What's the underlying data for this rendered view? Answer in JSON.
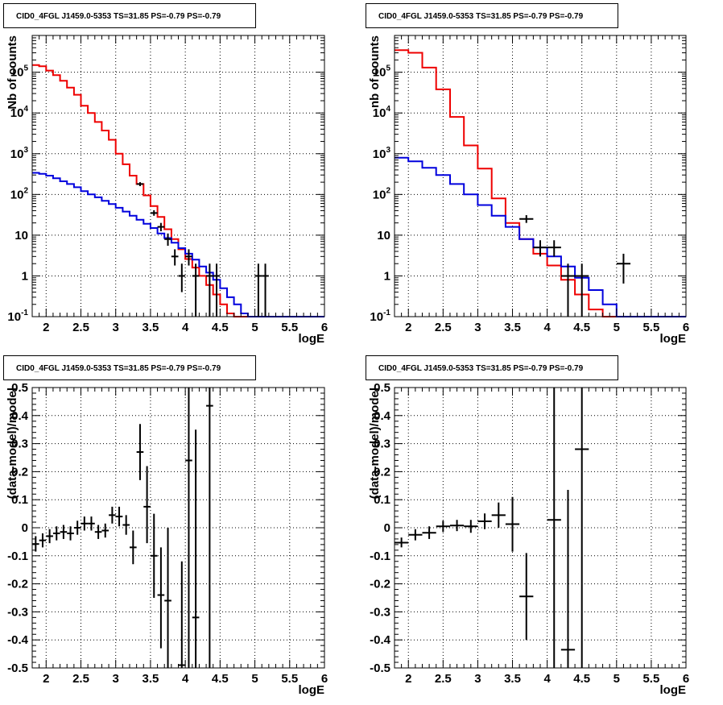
{
  "figure_title": "CID0_4FGL J1459.0-5353 TS=31.85 PS=-0.79 PS=-0.79",
  "colors": {
    "model_total": "#ee0000",
    "model_component": "#0000dd",
    "data": "#000000",
    "grid": "#000000",
    "background": "#ffffff"
  },
  "chart_data": [
    {
      "type": "line",
      "panel": "top-left",
      "title": "CID0_4FGL J1459.0-5353 TS=31.85 PS=-0.79 PS=-0.79",
      "xlabel": "logE",
      "ylabel": "Nb of counts",
      "xlim": [
        1.8,
        6.0
      ],
      "ylim": [
        0.1,
        800000
      ],
      "ylog": true,
      "grid": true,
      "xticks": [
        "2",
        "2.5",
        "3",
        "3.5",
        "4",
        "4.5",
        "5",
        "5.5",
        "6"
      ],
      "yticks": [
        "10^{-1}",
        "1",
        "10",
        "10^{2}",
        "10^{3}",
        "10^{4}",
        "10^{5}"
      ],
      "bin_edges": [
        1.8,
        1.9,
        2.0,
        2.1,
        2.2,
        2.3,
        2.4,
        2.5,
        2.6,
        2.7,
        2.8,
        2.9,
        3.0,
        3.1,
        3.2,
        3.3,
        3.4,
        3.5,
        3.6,
        3.7,
        3.8,
        3.9,
        4.0,
        4.1,
        4.2,
        4.3,
        4.4,
        4.5,
        4.6,
        4.7,
        4.8,
        4.9,
        5.0,
        5.1,
        5.2,
        5.3,
        5.4,
        5.5,
        5.6,
        5.7,
        5.8,
        5.9,
        6.0
      ],
      "series": [
        {
          "role": "model_total",
          "color": "#ee0000",
          "values": [
            150000,
            140000,
            110000,
            85000,
            62000,
            42000,
            28000,
            15000,
            10000,
            6000,
            3700,
            2200,
            1000,
            550,
            290,
            180,
            95,
            52,
            28,
            14,
            8,
            4.5,
            2.6,
            1.6,
            1.0,
            0.6,
            0.35,
            0.2,
            0.12,
            0.1,
            0.1,
            0.1,
            0.1,
            0.1,
            0.1,
            0.1,
            0.1,
            0.1,
            0.1,
            0.1,
            0.1,
            0.1
          ]
        },
        {
          "role": "model_component",
          "color": "#0000dd",
          "values": [
            340,
            320,
            290,
            250,
            210,
            180,
            150,
            120,
            100,
            85,
            70,
            58,
            47,
            38,
            30,
            24,
            19,
            15,
            11,
            8.5,
            6.5,
            4.8,
            3.5,
            2.5,
            1.7,
            1.2,
            0.8,
            0.5,
            0.3,
            0.2,
            0.12,
            0.1,
            0.1,
            0.1,
            0.1,
            0.1,
            0.1,
            0.1,
            0.1,
            0.1,
            0.1,
            0.1
          ]
        }
      ],
      "points": [
        {
          "x": 3.35,
          "xerr": 0.05,
          "y": 180,
          "ylo": 160,
          "yhi": 200
        },
        {
          "x": 3.55,
          "xerr": 0.05,
          "y": 35,
          "ylo": 30,
          "yhi": 41
        },
        {
          "x": 3.65,
          "xerr": 0.05,
          "y": 16,
          "ylo": 12.5,
          "yhi": 20
        },
        {
          "x": 3.75,
          "xerr": 0.05,
          "y": 8,
          "ylo": 5.5,
          "yhi": 11
        },
        {
          "x": 3.85,
          "xerr": 0.05,
          "y": 3,
          "ylo": 1.8,
          "yhi": 4.5
        },
        {
          "x": 3.95,
          "xerr": 0.05,
          "y": 1,
          "ylo": 0.4,
          "yhi": 2.0
        },
        {
          "x": 4.05,
          "xerr": 0.05,
          "y": 3,
          "ylo": 1.8,
          "yhi": 4.5
        },
        {
          "x": 4.15,
          "xerr": 0.05,
          "y": 1,
          "ylo": 0.1,
          "yhi": 2.0
        },
        {
          "x": 4.35,
          "xerr": 0.05,
          "y": 1,
          "ylo": 0.1,
          "yhi": 2.0
        },
        {
          "x": 4.45,
          "xerr": 0.05,
          "y": 1,
          "ylo": 0.1,
          "yhi": 2.0
        },
        {
          "x": 5.05,
          "xerr": 0.05,
          "y": 1,
          "ylo": 0.1,
          "yhi": 2.0
        },
        {
          "x": 5.15,
          "xerr": 0.05,
          "y": 1,
          "ylo": 0.1,
          "yhi": 2.0
        }
      ]
    },
    {
      "type": "line",
      "panel": "top-right",
      "title": "CID0_4FGL J1459.0-5353 TS=31.85 PS=-0.79 PS=-0.79",
      "xlabel": "logE",
      "ylabel": "nb of counts",
      "xlim": [
        1.8,
        6.0
      ],
      "ylim": [
        0.1,
        800000
      ],
      "ylog": true,
      "grid": true,
      "xticks": [
        "2",
        "2.5",
        "3",
        "3.5",
        "4",
        "4.5",
        "5",
        "5.5",
        "6"
      ],
      "yticks": [
        "10^{-1}",
        "1",
        "10",
        "10^{2}",
        "10^{3}",
        "10^{4}",
        "10^{5}"
      ],
      "bin_edges": [
        1.8,
        2.0,
        2.2,
        2.4,
        2.6,
        2.8,
        3.0,
        3.2,
        3.4,
        3.6,
        3.8,
        4.0,
        4.2,
        4.4,
        4.6,
        4.8,
        5.0,
        5.2,
        5.4,
        5.6,
        5.8,
        6.0
      ],
      "series": [
        {
          "role": "model_total",
          "color": "#ee0000",
          "values": [
            350000,
            300000,
            130000,
            38000,
            8000,
            1600,
            430,
            80,
            20,
            8,
            3.5,
            1.8,
            0.8,
            0.35,
            0.15,
            0.1,
            0.1,
            0.1,
            0.1,
            0.1,
            0.1
          ]
        },
        {
          "role": "model_component",
          "color": "#0000dd",
          "values": [
            800,
            650,
            450,
            300,
            180,
            100,
            55,
            30,
            16,
            8,
            5,
            3,
            1.7,
            0.9,
            0.45,
            0.2,
            0.1,
            0.1,
            0.1,
            0.1,
            0.1
          ]
        }
      ],
      "points": [
        {
          "x": 3.7,
          "xerr": 0.1,
          "y": 25,
          "ylo": 20,
          "yhi": 31
        },
        {
          "x": 3.9,
          "xerr": 0.1,
          "y": 5,
          "ylo": 3,
          "yhi": 7.5
        },
        {
          "x": 4.1,
          "xerr": 0.1,
          "y": 5,
          "ylo": 3,
          "yhi": 7.5
        },
        {
          "x": 4.3,
          "xerr": 0.1,
          "y": 1,
          "ylo": 0.1,
          "yhi": 2.0
        },
        {
          "x": 4.5,
          "xerr": 0.1,
          "y": 1,
          "ylo": 0.1,
          "yhi": 2.0
        },
        {
          "x": 5.1,
          "xerr": 0.1,
          "y": 2,
          "ylo": 0.65,
          "yhi": 3.5
        }
      ]
    },
    {
      "type": "scatter",
      "panel": "bottom-left",
      "title": "CID0_4FGL J1459.0-5353 TS=31.85 PS=-0.79 PS=-0.79",
      "xlabel": "logE",
      "ylabel": "(data-model)/model",
      "xlim": [
        1.8,
        6.0
      ],
      "ylim": [
        -0.5,
        0.5
      ],
      "ylog": false,
      "grid": true,
      "xticks": [
        "2",
        "2.5",
        "3",
        "3.5",
        "4",
        "4.5",
        "5",
        "5.5",
        "6"
      ],
      "yticks": [
        "-0.5",
        "-0.4",
        "-0.3",
        "-0.2",
        "-0.1",
        "0",
        "0.1",
        "0.2",
        "0.3",
        "0.4",
        "0.5"
      ],
      "points": [
        {
          "x": 1.85,
          "xerr": 0.05,
          "y": -0.058,
          "ylo": -0.085,
          "yhi": -0.03
        },
        {
          "x": 1.95,
          "xerr": 0.05,
          "y": -0.045,
          "ylo": -0.07,
          "yhi": -0.02
        },
        {
          "x": 2.05,
          "xerr": 0.05,
          "y": -0.03,
          "ylo": -0.055,
          "yhi": -0.005
        },
        {
          "x": 2.15,
          "xerr": 0.05,
          "y": -0.02,
          "ylo": -0.045,
          "yhi": 0.005
        },
        {
          "x": 2.25,
          "xerr": 0.05,
          "y": -0.015,
          "ylo": -0.04,
          "yhi": 0.01
        },
        {
          "x": 2.35,
          "xerr": 0.05,
          "y": -0.02,
          "ylo": -0.045,
          "yhi": 0.005
        },
        {
          "x": 2.45,
          "xerr": 0.05,
          "y": 0.0,
          "ylo": -0.025,
          "yhi": 0.025
        },
        {
          "x": 2.55,
          "xerr": 0.05,
          "y": 0.015,
          "ylo": -0.01,
          "yhi": 0.04
        },
        {
          "x": 2.65,
          "xerr": 0.05,
          "y": 0.015,
          "ylo": -0.01,
          "yhi": 0.04
        },
        {
          "x": 2.75,
          "xerr": 0.05,
          "y": -0.015,
          "ylo": -0.04,
          "yhi": 0.01
        },
        {
          "x": 2.85,
          "xerr": 0.05,
          "y": -0.01,
          "ylo": -0.035,
          "yhi": 0.015
        },
        {
          "x": 2.95,
          "xerr": 0.05,
          "y": 0.045,
          "ylo": 0.015,
          "yhi": 0.075
        },
        {
          "x": 3.05,
          "xerr": 0.05,
          "y": 0.04,
          "ylo": 0.005,
          "yhi": 0.075
        },
        {
          "x": 3.15,
          "xerr": 0.05,
          "y": 0.01,
          "ylo": -0.025,
          "yhi": 0.045
        },
        {
          "x": 3.25,
          "xerr": 0.05,
          "y": -0.07,
          "ylo": -0.13,
          "yhi": -0.01
        },
        {
          "x": 3.35,
          "xerr": 0.05,
          "y": 0.27,
          "ylo": 0.17,
          "yhi": 0.37
        },
        {
          "x": 3.45,
          "xerr": 0.05,
          "y": 0.075,
          "ylo": -0.055,
          "yhi": 0.22
        },
        {
          "x": 3.55,
          "xerr": 0.05,
          "y": -0.1,
          "ylo": -0.25,
          "yhi": 0.05
        },
        {
          "x": 3.65,
          "xerr": 0.05,
          "y": -0.24,
          "ylo": -0.43,
          "yhi": -0.07
        },
        {
          "x": 3.75,
          "xerr": 0.05,
          "y": -0.26,
          "ylo": -0.5,
          "yhi": -0.0
        },
        {
          "x": 3.95,
          "xerr": 0.05,
          "y": -0.49,
          "ylo": -0.5,
          "yhi": -0.12
        },
        {
          "x": 4.05,
          "xerr": 0.05,
          "y": 0.24,
          "ylo": -0.5,
          "yhi": 0.5
        },
        {
          "x": 4.15,
          "xerr": 0.05,
          "y": -0.32,
          "ylo": -0.5,
          "yhi": 0.35
        },
        {
          "x": 4.35,
          "xerr": 0.05,
          "y": 0.435,
          "ylo": -0.5,
          "yhi": 0.5
        }
      ]
    },
    {
      "type": "scatter",
      "panel": "bottom-right",
      "title": "CID0_4FGL J1459.0-5353 TS=31.85 PS=-0.79 PS=-0.79",
      "xlabel": "logE",
      "ylabel": "(data-model)/model",
      "xlim": [
        1.8,
        6.0
      ],
      "ylim": [
        -0.5,
        0.5
      ],
      "ylog": false,
      "grid": true,
      "xticks": [
        "2",
        "2.5",
        "3",
        "3.5",
        "4",
        "4.5",
        "5",
        "5.5",
        "6"
      ],
      "yticks": [
        "-0.5",
        "-0.4",
        "-0.3",
        "-0.2",
        "-0.1",
        "0",
        "0.1",
        "0.2",
        "0.3",
        "0.4",
        "0.5"
      ],
      "points": [
        {
          "x": 1.9,
          "xerr": 0.1,
          "y": -0.053,
          "ylo": -0.07,
          "yhi": -0.035
        },
        {
          "x": 2.1,
          "xerr": 0.1,
          "y": -0.025,
          "ylo": -0.045,
          "yhi": -0.005
        },
        {
          "x": 2.3,
          "xerr": 0.1,
          "y": -0.018,
          "ylo": -0.04,
          "yhi": 0.005
        },
        {
          "x": 2.5,
          "xerr": 0.1,
          "y": 0.005,
          "ylo": -0.015,
          "yhi": 0.025
        },
        {
          "x": 2.7,
          "xerr": 0.1,
          "y": 0.008,
          "ylo": -0.012,
          "yhi": 0.028
        },
        {
          "x": 2.9,
          "xerr": 0.1,
          "y": 0.005,
          "ylo": -0.018,
          "yhi": 0.028
        },
        {
          "x": 3.1,
          "xerr": 0.1,
          "y": 0.023,
          "ylo": -0.005,
          "yhi": 0.051
        },
        {
          "x": 3.3,
          "xerr": 0.1,
          "y": 0.045,
          "ylo": 0.0,
          "yhi": 0.09
        },
        {
          "x": 3.5,
          "xerr": 0.1,
          "y": 0.013,
          "ylo": -0.085,
          "yhi": 0.11
        },
        {
          "x": 3.7,
          "xerr": 0.1,
          "y": -0.245,
          "ylo": -0.4,
          "yhi": -0.09
        },
        {
          "x": 4.1,
          "xerr": 0.1,
          "y": 0.028,
          "ylo": -0.5,
          "yhi": 0.5
        },
        {
          "x": 4.3,
          "xerr": 0.1,
          "y": -0.435,
          "ylo": -0.5,
          "yhi": 0.135
        },
        {
          "x": 4.5,
          "xerr": 0.1,
          "y": 0.28,
          "ylo": -0.5,
          "yhi": 0.5
        }
      ]
    }
  ]
}
